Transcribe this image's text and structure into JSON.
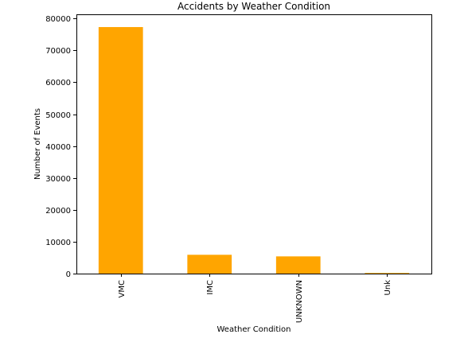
{
  "chart_data": {
    "type": "bar",
    "title": "Accidents by Weather Condition",
    "xlabel": "Weather Condition",
    "ylabel": "Number of Events",
    "categories": [
      "VMC",
      "IMC",
      "UNKNOWN",
      "Unk"
    ],
    "values": [
      77300,
      5900,
      5400,
      200
    ],
    "ylim": [
      0,
      81300
    ],
    "yticks": [
      0,
      10000,
      20000,
      30000,
      40000,
      50000,
      60000,
      70000,
      80000
    ],
    "grid": false,
    "legend": "none",
    "bar_color": "#FFA500"
  }
}
